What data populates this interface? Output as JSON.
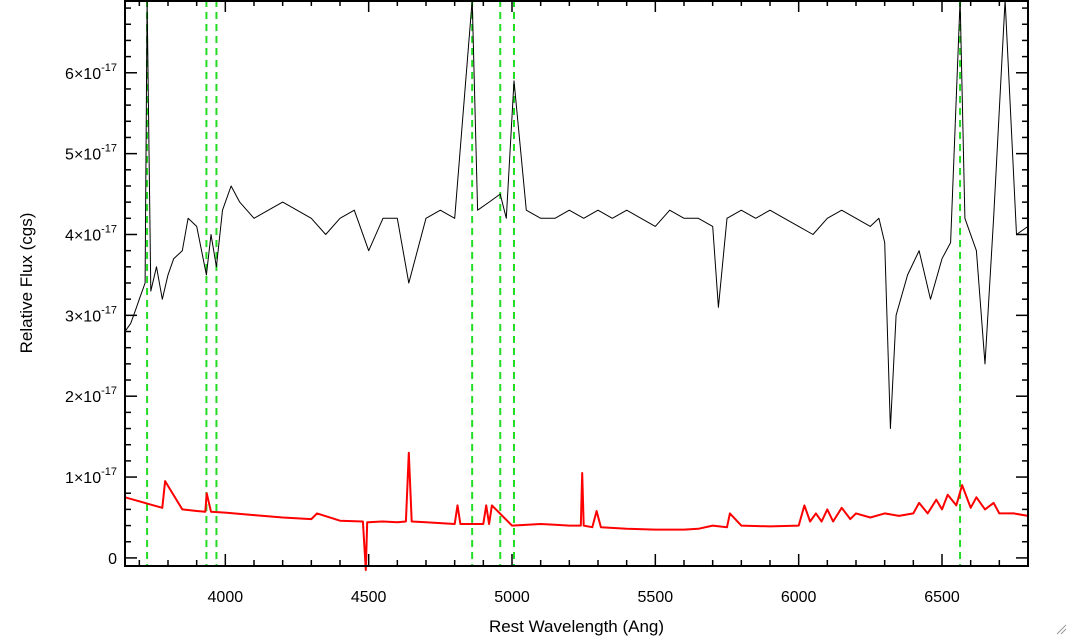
{
  "chart_data": {
    "type": "line",
    "title": "",
    "xlabel": "Rest Wavelength (Ang)",
    "ylabel": "Relative Flux (cgs)",
    "xlim": [
      3650,
      6800
    ],
    "ylim": [
      -1e-18,
      6.9e-17
    ],
    "x_ticks": [
      {
        "value": 4000,
        "label": "4000"
      },
      {
        "value": 4500,
        "label": "4500"
      },
      {
        "value": 5000,
        "label": "5000"
      },
      {
        "value": 5500,
        "label": "5500"
      },
      {
        "value": 6000,
        "label": "6000"
      },
      {
        "value": 6500,
        "label": "6500"
      }
    ],
    "y_ticks": [
      {
        "value": 0,
        "mant": "0",
        "exp": ""
      },
      {
        "value": 1e-17,
        "mant": "1×10",
        "exp": "-17"
      },
      {
        "value": 2e-17,
        "mant": "2×10",
        "exp": "-17"
      },
      {
        "value": 3e-17,
        "mant": "3×10",
        "exp": "-17"
      },
      {
        "value": 4e-17,
        "mant": "4×10",
        "exp": "-17"
      },
      {
        "value": 5e-17,
        "mant": "5×10",
        "exp": "-17"
      },
      {
        "value": 6e-17,
        "mant": "6×10",
        "exp": "-17"
      }
    ],
    "vlines": [
      3727,
      3934,
      3969,
      4861,
      4959,
      5007,
      6563
    ],
    "grid": false,
    "legend": "none",
    "series": [
      {
        "color": "#000000",
        "x": [
          3650,
          3670,
          3690,
          3700,
          3720,
          3727,
          3740,
          3760,
          3780,
          3800,
          3820,
          3850,
          3870,
          3900,
          3934,
          3950,
          3969,
          3990,
          4020,
          4050,
          4100,
          4150,
          4200,
          4250,
          4300,
          4350,
          4400,
          4450,
          4500,
          4550,
          4600,
          4640,
          4700,
          4750,
          4800,
          4861,
          4880,
          4920,
          4959,
          4980,
          5007,
          5050,
          5100,
          5150,
          5200,
          5250,
          5300,
          5350,
          5400,
          5450,
          5500,
          5550,
          5600,
          5650,
          5700,
          5720,
          5750,
          5800,
          5850,
          5900,
          5950,
          6000,
          6050,
          6100,
          6150,
          6200,
          6250,
          6280,
          6300,
          6320,
          6340,
          6380,
          6420,
          6460,
          6500,
          6530,
          6563,
          6580,
          6620,
          6650,
          6680,
          6720,
          6760,
          6800
        ],
        "y": [
          2.8e-17,
          2.9e-17,
          3.1e-17,
          3.2e-17,
          3.4e-17,
          7e-17,
          3.3e-17,
          3.6e-17,
          3.2e-17,
          3.5e-17,
          3.7e-17,
          3.8e-17,
          4.2e-17,
          4.1e-17,
          3.5e-17,
          4e-17,
          3.6e-17,
          4.3e-17,
          4.6e-17,
          4.4e-17,
          4.2e-17,
          4.3e-17,
          4.4e-17,
          4.3e-17,
          4.2e-17,
          4e-17,
          4.2e-17,
          4.3e-17,
          3.8e-17,
          4.2e-17,
          4.2e-17,
          3.4e-17,
          4.2e-17,
          4.3e-17,
          4.2e-17,
          7e-17,
          4.3e-17,
          4.4e-17,
          4.5e-17,
          4.2e-17,
          5.9e-17,
          4.3e-17,
          4.2e-17,
          4.2e-17,
          4.3e-17,
          4.2e-17,
          4.3e-17,
          4.2e-17,
          4.3e-17,
          4.2e-17,
          4.1e-17,
          4.3e-17,
          4.2e-17,
          4.2e-17,
          4.1e-17,
          3.1e-17,
          4.2e-17,
          4.3e-17,
          4.2e-17,
          4.3e-17,
          4.2e-17,
          4.1e-17,
          4e-17,
          4.2e-17,
          4.3e-17,
          4.2e-17,
          4.1e-17,
          4.2e-17,
          3.9e-17,
          1.6e-17,
          3e-17,
          3.5e-17,
          3.8e-17,
          3.2e-17,
          3.7e-17,
          3.9e-17,
          7e-17,
          4.2e-17,
          3.8e-17,
          2.4e-17,
          4.2e-17,
          6.9e-17,
          4e-17,
          4.1e-17
        ]
      },
      {
        "color": "#ff0000",
        "x": [
          3650,
          3700,
          3750,
          3780,
          3790,
          3850,
          3900,
          3930,
          3935,
          3950,
          4000,
          4100,
          4200,
          4300,
          4320,
          4400,
          4480,
          4490,
          4495,
          4500,
          4550,
          4600,
          4630,
          4640,
          4650,
          4700,
          4750,
          4800,
          4810,
          4820,
          4850,
          4900,
          4910,
          4920,
          4930,
          5000,
          5100,
          5150,
          5200,
          5240,
          5245,
          5250,
          5280,
          5295,
          5310,
          5400,
          5500,
          5600,
          5650,
          5700,
          5750,
          5760,
          5800,
          5900,
          6000,
          6020,
          6040,
          6060,
          6080,
          6100,
          6120,
          6150,
          6180,
          6200,
          6250,
          6300,
          6350,
          6400,
          6420,
          6450,
          6480,
          6500,
          6520,
          6550,
          6570,
          6600,
          6620,
          6650,
          6680,
          6700,
          6750,
          6800
        ],
        "y": [
          7.5e-18,
          7e-18,
          6.5e-18,
          6.2e-18,
          9.5e-18,
          6e-18,
          5.8e-18,
          5.7e-18,
          8e-18,
          5.7e-18,
          5.6e-18,
          5.3e-18,
          5e-18,
          4.8e-18,
          5.5e-18,
          4.6e-18,
          4.5e-18,
          -1.5e-18,
          4.4e-18,
          4.4e-18,
          4.5e-18,
          4.4e-18,
          4.5e-18,
          1.3e-17,
          4.5e-18,
          4.4e-18,
          4.3e-18,
          4.2e-18,
          6.5e-18,
          4.2e-18,
          4.2e-18,
          4.2e-18,
          6.5e-18,
          4.2e-18,
          6.5e-18,
          4e-18,
          4.2e-18,
          4.1e-18,
          4e-18,
          4e-18,
          1.05e-17,
          4e-18,
          3.8e-18,
          5.8e-18,
          3.8e-18,
          3.6e-18,
          3.5e-18,
          3.5e-18,
          3.6e-18,
          4e-18,
          3.8e-18,
          5.5e-18,
          4e-18,
          3.9e-18,
          4e-18,
          6.5e-18,
          4.5e-18,
          5.5e-18,
          4.5e-18,
          6e-18,
          4.5e-18,
          6.2e-18,
          4.8e-18,
          5.5e-18,
          5e-18,
          5.5e-18,
          5.2e-18,
          5.5e-18,
          6.8e-18,
          5.5e-18,
          7.2e-18,
          6e-18,
          7.8e-18,
          6.5e-18,
          9e-18,
          6.2e-18,
          7.5e-18,
          6e-18,
          6.8e-18,
          5.5e-18,
          5.5e-18,
          5.2e-18
        ]
      }
    ]
  }
}
